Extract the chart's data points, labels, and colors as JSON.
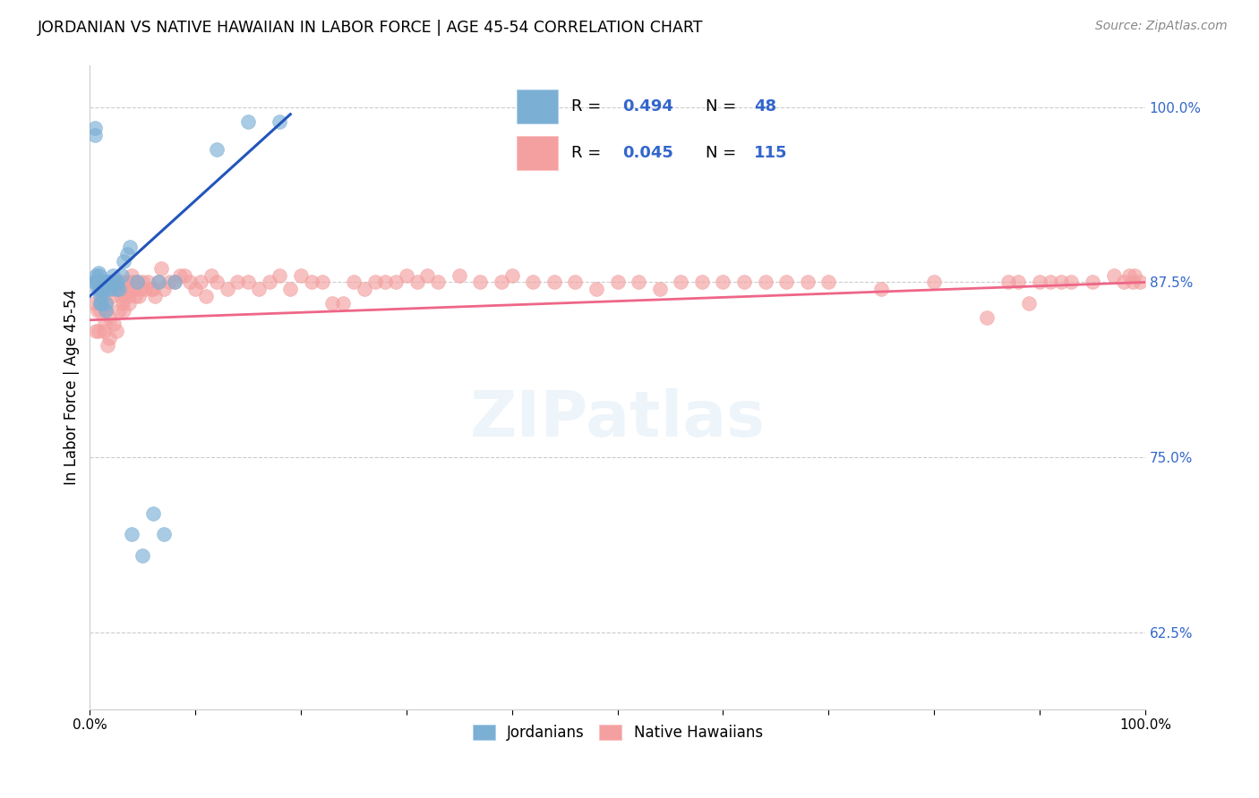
{
  "title": "JORDANIAN VS NATIVE HAWAIIAN IN LABOR FORCE | AGE 45-54 CORRELATION CHART",
  "source": "Source: ZipAtlas.com",
  "ylabel": "In Labor Force | Age 45-54",
  "legend_entries": [
    "Jordanians",
    "Native Hawaiians"
  ],
  "r_jordanian": 0.494,
  "n_jordanian": 48,
  "r_hawaiian": 0.045,
  "n_hawaiian": 115,
  "blue_color": "#7BAFD4",
  "pink_color": "#F4A0A0",
  "blue_line_color": "#2255BB",
  "pink_line_color": "#EE6688",
  "text_color_blue": "#3366CC",
  "background_color": "#FFFFFF",
  "xlim": [
    0.0,
    1.0
  ],
  "ylim": [
    0.57,
    1.03
  ],
  "right_yticks": [
    0.625,
    0.75,
    0.875,
    1.0
  ],
  "right_yticklabels": [
    "62.5%",
    "75.0%",
    "87.5%",
    "100.0%"
  ],
  "jordanian_x": [
    0.004,
    0.005,
    0.005,
    0.006,
    0.006,
    0.007,
    0.007,
    0.008,
    0.008,
    0.009,
    0.009,
    0.009,
    0.01,
    0.01,
    0.01,
    0.011,
    0.011,
    0.012,
    0.012,
    0.013,
    0.013,
    0.014,
    0.015,
    0.015,
    0.016,
    0.017,
    0.018,
    0.019,
    0.02,
    0.022,
    0.023,
    0.025,
    0.026,
    0.028,
    0.03,
    0.032,
    0.035,
    0.038,
    0.04,
    0.045,
    0.05,
    0.06,
    0.065,
    0.07,
    0.08,
    0.12,
    0.15,
    0.18
  ],
  "jordanian_y": [
    0.875,
    0.98,
    0.985,
    0.875,
    0.88,
    0.87,
    0.875,
    0.875,
    0.882,
    0.87,
    0.875,
    0.88,
    0.875,
    0.865,
    0.86,
    0.875,
    0.86,
    0.875,
    0.87,
    0.875,
    0.87,
    0.875,
    0.855,
    0.86,
    0.87,
    0.875,
    0.875,
    0.87,
    0.875,
    0.88,
    0.875,
    0.87,
    0.875,
    0.87,
    0.88,
    0.89,
    0.895,
    0.9,
    0.695,
    0.875,
    0.68,
    0.71,
    0.875,
    0.695,
    0.875,
    0.97,
    0.99,
    0.99
  ],
  "hawaiian_x": [
    0.005,
    0.006,
    0.007,
    0.008,
    0.009,
    0.01,
    0.011,
    0.012,
    0.013,
    0.014,
    0.015,
    0.016,
    0.017,
    0.018,
    0.019,
    0.02,
    0.021,
    0.022,
    0.023,
    0.025,
    0.026,
    0.027,
    0.028,
    0.029,
    0.03,
    0.031,
    0.032,
    0.033,
    0.035,
    0.036,
    0.037,
    0.038,
    0.04,
    0.041,
    0.042,
    0.043,
    0.045,
    0.046,
    0.048,
    0.05,
    0.052,
    0.055,
    0.058,
    0.06,
    0.062,
    0.065,
    0.068,
    0.07,
    0.075,
    0.08,
    0.085,
    0.09,
    0.095,
    0.1,
    0.105,
    0.11,
    0.115,
    0.12,
    0.13,
    0.14,
    0.15,
    0.16,
    0.17,
    0.18,
    0.19,
    0.2,
    0.21,
    0.22,
    0.23,
    0.24,
    0.25,
    0.26,
    0.27,
    0.28,
    0.29,
    0.3,
    0.31,
    0.32,
    0.33,
    0.35,
    0.37,
    0.39,
    0.4,
    0.42,
    0.44,
    0.46,
    0.48,
    0.5,
    0.52,
    0.54,
    0.56,
    0.58,
    0.6,
    0.62,
    0.64,
    0.66,
    0.68,
    0.7,
    0.75,
    0.8,
    0.85,
    0.87,
    0.88,
    0.89,
    0.9,
    0.91,
    0.92,
    0.93,
    0.95,
    0.97,
    0.98,
    0.985,
    0.988,
    0.99,
    0.995
  ],
  "hawaiian_y": [
    0.86,
    0.84,
    0.855,
    0.84,
    0.86,
    0.855,
    0.87,
    0.865,
    0.84,
    0.845,
    0.855,
    0.86,
    0.83,
    0.835,
    0.85,
    0.875,
    0.865,
    0.87,
    0.845,
    0.84,
    0.875,
    0.87,
    0.855,
    0.865,
    0.875,
    0.86,
    0.855,
    0.865,
    0.87,
    0.865,
    0.86,
    0.875,
    0.88,
    0.875,
    0.87,
    0.865,
    0.875,
    0.865,
    0.87,
    0.875,
    0.87,
    0.875,
    0.87,
    0.87,
    0.865,
    0.875,
    0.885,
    0.87,
    0.875,
    0.875,
    0.88,
    0.88,
    0.875,
    0.87,
    0.875,
    0.865,
    0.88,
    0.875,
    0.87,
    0.875,
    0.875,
    0.87,
    0.875,
    0.88,
    0.87,
    0.88,
    0.875,
    0.875,
    0.86,
    0.86,
    0.875,
    0.87,
    0.875,
    0.875,
    0.875,
    0.88,
    0.875,
    0.88,
    0.875,
    0.88,
    0.875,
    0.875,
    0.88,
    0.875,
    0.875,
    0.875,
    0.87,
    0.875,
    0.875,
    0.87,
    0.875,
    0.875,
    0.875,
    0.875,
    0.875,
    0.875,
    0.875,
    0.875,
    0.87,
    0.875,
    0.85,
    0.875,
    0.875,
    0.86,
    0.875,
    0.875,
    0.875,
    0.875,
    0.875,
    0.88,
    0.875,
    0.88,
    0.875,
    0.88,
    0.875
  ],
  "jordanian_trend_x": [
    0.0,
    0.19
  ],
  "jordanian_trend_y": [
    0.865,
    0.995
  ],
  "hawaiian_trend_x": [
    0.0,
    1.0
  ],
  "hawaiian_trend_y": [
    0.848,
    0.875
  ]
}
